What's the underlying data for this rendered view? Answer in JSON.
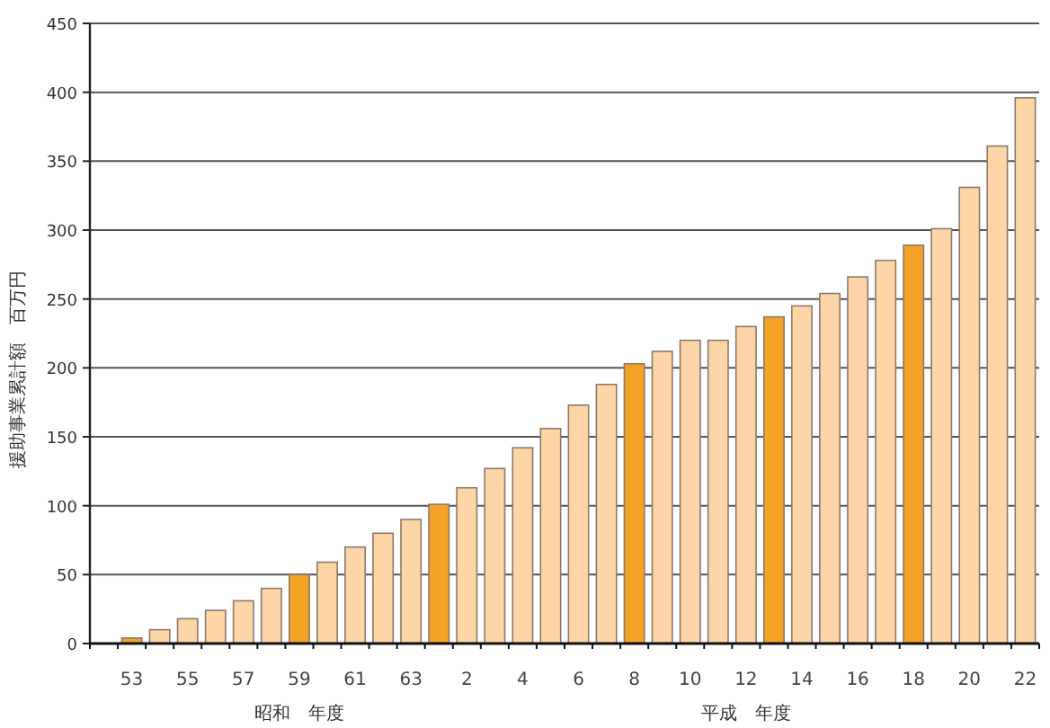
{
  "chart_data": {
    "type": "bar",
    "ylabel": "援助事業累計額　百万円",
    "annotations": [
      "昭和　年度",
      "平成　年度"
    ],
    "categories": [
      null,
      "53",
      null,
      "55",
      null,
      "57",
      null,
      "59",
      null,
      "61",
      null,
      "63",
      null,
      "2",
      null,
      "4",
      null,
      "6",
      null,
      "8",
      null,
      "10",
      null,
      "12",
      null,
      "14",
      null,
      "16",
      null,
      "18",
      null,
      "20",
      null,
      "22"
    ],
    "values": [
      null,
      4,
      10,
      18,
      24,
      31,
      40,
      50,
      59,
      70,
      80,
      90,
      101,
      113,
      127,
      142,
      156,
      173,
      188,
      203,
      212,
      220,
      220,
      230,
      237,
      245,
      254,
      266,
      278,
      289,
      301,
      331,
      361,
      396
    ],
    "colors": [
      null,
      "#f5a326",
      "#fdd5a6",
      "#fdd5a6",
      "#fdd5a6",
      "#fdd5a6",
      "#fdd5a6",
      "#f5a326",
      "#fdd5a6",
      "#fdd5a6",
      "#fdd5a6",
      "#fdd5a6",
      "#f5a326",
      "#fdd5a6",
      "#fdd5a6",
      "#fdd5a6",
      "#fdd5a6",
      "#fdd5a6",
      "#fdd5a6",
      "#f5a326",
      "#fdd5a6",
      "#fdd5a6",
      "#fdd5a6",
      "#fdd5a6",
      "#f5a326",
      "#fdd5a6",
      "#fdd5a6",
      "#fdd5a6",
      "#fdd5a6",
      "#f5a326",
      "#fdd5a6",
      "#fdd5a6",
      "#fdd5a6",
      "#fdd5a6"
    ],
    "ylim": [
      0,
      450
    ],
    "yticks": [
      0,
      50,
      100,
      150,
      200,
      250,
      300,
      350,
      400,
      450
    ],
    "grid": "y"
  }
}
